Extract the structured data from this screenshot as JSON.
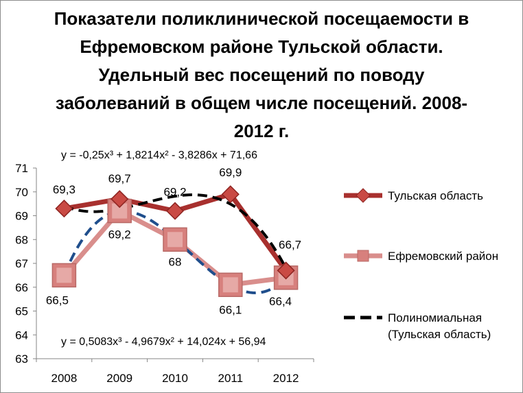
{
  "chart_data": {
    "type": "line",
    "title": "Показатели поликлинической посещаемости в Ефремовском районе Тульской области. Удельный вес посещений по поводу заболеваний в общем числе посещений.  2008-2012 г.",
    "categories": [
      "2008",
      "2009",
      "2010",
      "2011",
      "2012"
    ],
    "y_ticks": [
      "63",
      "64",
      "65",
      "66",
      "67",
      "68",
      "69",
      "70",
      "71"
    ],
    "ylim": [
      63,
      71
    ],
    "grid": false,
    "legend_position": "right",
    "series": [
      {
        "name": "Тульская область",
        "values": [
          69.3,
          69.7,
          69.2,
          69.9,
          66.7
        ],
        "labels": [
          "69,3",
          "69,7",
          "69,2",
          "69,9",
          "66,7"
        ],
        "color": "#a8302e",
        "marker": "diamond"
      },
      {
        "name": "Ефремовский район",
        "values": [
          66.5,
          69.2,
          68,
          66.1,
          66.4
        ],
        "labels": [
          "66,5",
          "69,2",
          "68",
          "66,1",
          "66,4"
        ],
        "color": "#d98e8c",
        "marker": "square"
      }
    ],
    "trendlines": [
      {
        "legend_label_line1": "Полиномиальная",
        "legend_label_line2": "(Тульская область)",
        "equation": "y = -0,25x³ + 1,8214x² - 3,8286x + 71,66",
        "coefficients": [
          -0.25,
          1.8214,
          -3.8286,
          71.66
        ],
        "color": "#000000",
        "style": "dashed"
      },
      {
        "equation": "y = 0,5083x³ - 4,9679x² + 14,024x + 56,94",
        "coefficients": [
          0.5083,
          -4.9679,
          14.024,
          56.94
        ],
        "color": "#1f4e8c",
        "style": "dashed"
      }
    ]
  }
}
